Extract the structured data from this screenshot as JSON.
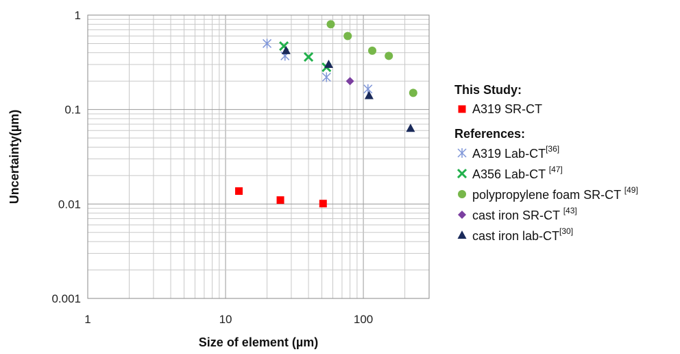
{
  "chart_data": {
    "type": "scatter",
    "xlabel": "Size of element (µm)",
    "ylabel": "Uncertainty(µm)",
    "x_scale": "log",
    "y_scale": "log",
    "xlim": [
      1,
      300
    ],
    "ylim": [
      0.001,
      1
    ],
    "x_ticks": [
      "1",
      "10",
      "100"
    ],
    "y_ticks": [
      "1",
      "0.1",
      "0.01",
      "0.001"
    ],
    "grid": true,
    "legend_position": "right",
    "legend_headings": {
      "study": "This Study:",
      "references": "References:"
    },
    "series": [
      {
        "name": "A319 SR-CT",
        "ref": "",
        "group": "study",
        "marker": "square",
        "color": "#ff0000",
        "x": [
          12.5,
          25,
          51
        ],
        "y": [
          0.0137,
          0.011,
          0.0101
        ]
      },
      {
        "name": "A319 Lab-CT",
        "ref": "[36]",
        "group": "references",
        "marker": "asterisk",
        "color": "#7f96d8",
        "x": [
          20,
          27,
          54,
          108
        ],
        "y": [
          0.5,
          0.37,
          0.22,
          0.165
        ]
      },
      {
        "name": "A356 Lab-CT ",
        "ref": "[47]",
        "group": "references",
        "marker": "x",
        "color": "#22b04c",
        "x": [
          26.5,
          40,
          54
        ],
        "y": [
          0.47,
          0.36,
          0.28
        ]
      },
      {
        "name": "polypropylene foam SR-CT ",
        "ref": "[49]",
        "group": "references",
        "marker": "circle",
        "color": "#77b74a",
        "x": [
          58,
          77,
          116,
          153,
          230
        ],
        "y": [
          0.8,
          0.6,
          0.42,
          0.37,
          0.15
        ]
      },
      {
        "name": "cast iron SR-CT ",
        "ref": "[43]",
        "group": "references",
        "marker": "diamond",
        "color": "#7b3fa0",
        "x": [
          80
        ],
        "y": [
          0.2
        ]
      },
      {
        "name": "cast iron lab-CT",
        "ref": "[30]",
        "group": "references",
        "marker": "triangle",
        "color": "#1a2a5a",
        "x": [
          27.5,
          56,
          110,
          220
        ],
        "y": [
          0.42,
          0.3,
          0.14,
          0.063
        ]
      }
    ]
  }
}
